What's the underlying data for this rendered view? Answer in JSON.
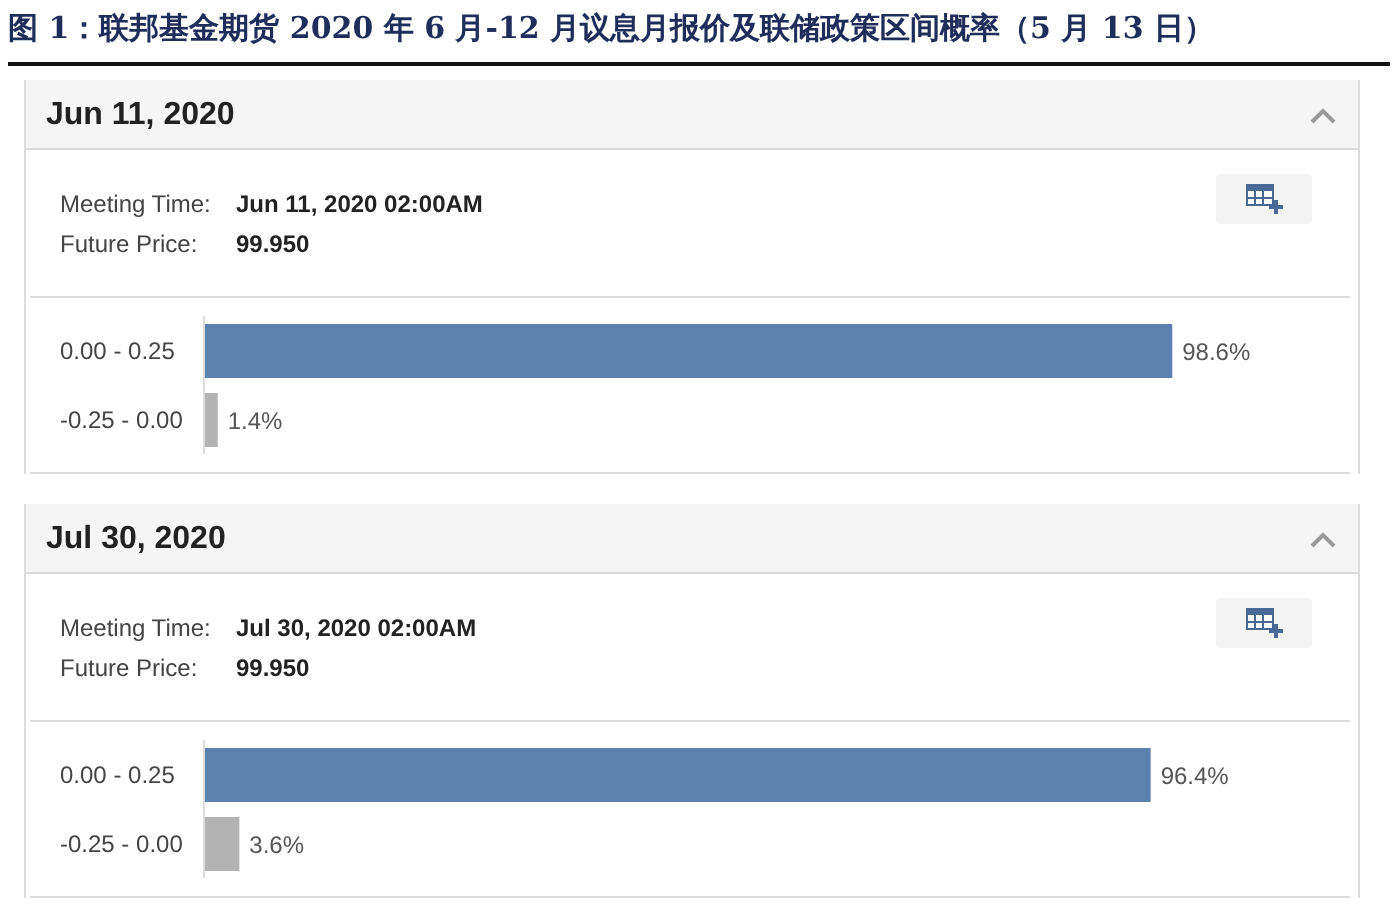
{
  "chart_data": [
    {
      "type": "other",
      "title": "图 1：联邦基金期货 2020 年 6 月-12 月议息月报价及联储政策区间概率（5 月 13 日）"
    },
    {
      "type": "bar",
      "title": "Jun 11, 2020",
      "annotations": [
        "Meeting Time:",
        "Jun 11, 2020 02:00AM",
        "Future Price:",
        "99.950"
      ],
      "orientation": "horizontal",
      "categories": [
        "0.00 - 0.25",
        "-0.25 - 0.00"
      ],
      "values": [
        98.6,
        1.4
      ],
      "colors": [
        "#5b82ae",
        "#b3b3b3"
      ],
      "value_labels": [
        "98.6%",
        "1.4%"
      ]
    },
    {
      "type": "bar",
      "title": "Jul 30, 2020",
      "annotations": [
        "Meeting Time:",
        "Jul 30, 2020 02:00AM",
        "Future Price:",
        "99.950"
      ],
      "orientation": "horizontal",
      "categories": [
        "0.00 - 0.25",
        "-0.25 - 0.00"
      ],
      "values": [
        96.4,
        3.6
      ],
      "colors": [
        "#5b82ae",
        "#b3b3b3"
      ],
      "value_labels": [
        "96.4%",
        "3.6%"
      ]
    }
  ]
}
